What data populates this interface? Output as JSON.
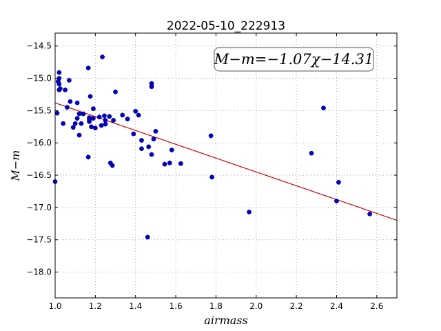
{
  "chart_data": {
    "type": "scatter",
    "title": "2022-05-10_222913",
    "xlabel": "airmass",
    "ylabel": "M−m",
    "xlim": [
      1.0,
      2.7
    ],
    "ylim": [
      -18.4,
      -14.3
    ],
    "x_ticks": [
      1.0,
      1.2,
      1.4,
      1.6,
      1.8,
      2.0,
      2.2,
      2.4,
      2.6
    ],
    "x_tick_labels": [
      "1.0",
      "1.2",
      "1.4",
      "1.6",
      "1.8",
      "2.0",
      "2.2",
      "2.4",
      "2.6"
    ],
    "y_ticks": [
      -14.5,
      -15.0,
      -15.5,
      -16.0,
      -16.5,
      -17.0,
      -17.5,
      -18.0
    ],
    "y_tick_labels": [
      "−14.5",
      "−15.0",
      "−15.5",
      "−16.0",
      "−16.5",
      "−17.0",
      "−17.5",
      "−18.0"
    ],
    "grid": true,
    "annotation": "M−m=−1.07χ−14.31",
    "fit": {
      "slope": -1.07,
      "intercept": -14.31,
      "color": "#cc0000"
    },
    "point_color": "#0000cc",
    "points": [
      [
        1.0,
        -16.6
      ],
      [
        1.01,
        -15.54
      ],
      [
        1.015,
        -15.05
      ],
      [
        1.02,
        -15.0
      ],
      [
        1.02,
        -15.09
      ],
      [
        1.02,
        -14.91
      ],
      [
        1.02,
        -15.18
      ],
      [
        1.025,
        -15.16
      ],
      [
        1.04,
        -15.7
      ],
      [
        1.05,
        -15.18
      ],
      [
        1.06,
        -15.45
      ],
      [
        1.07,
        -15.03
      ],
      [
        1.075,
        -15.36
      ],
      [
        1.09,
        -15.76
      ],
      [
        1.1,
        -15.7
      ],
      [
        1.11,
        -15.38
      ],
      [
        1.11,
        -15.62
      ],
      [
        1.12,
        -15.55
      ],
      [
        1.12,
        -15.88
      ],
      [
        1.13,
        -15.7
      ],
      [
        1.14,
        -15.55
      ],
      [
        1.165,
        -16.22
      ],
      [
        1.165,
        -14.84
      ],
      [
        1.17,
        -15.61
      ],
      [
        1.17,
        -15.67
      ],
      [
        1.17,
        -15.64
      ],
      [
        1.175,
        -15.28
      ],
      [
        1.18,
        -15.75
      ],
      [
        1.19,
        -15.62
      ],
      [
        1.19,
        -15.47
      ],
      [
        1.2,
        -15.77
      ],
      [
        1.22,
        -15.6
      ],
      [
        1.23,
        -15.73
      ],
      [
        1.235,
        -14.67
      ],
      [
        1.245,
        -15.58
      ],
      [
        1.25,
        -15.65
      ],
      [
        1.25,
        -15.71
      ],
      [
        1.27,
        -15.59
      ],
      [
        1.275,
        -16.31
      ],
      [
        1.285,
        -16.35
      ],
      [
        1.29,
        -15.65
      ],
      [
        1.3,
        -15.21
      ],
      [
        1.335,
        -15.57
      ],
      [
        1.36,
        -15.63
      ],
      [
        1.39,
        -15.86
      ],
      [
        1.4,
        -15.51
      ],
      [
        1.415,
        -15.57
      ],
      [
        1.43,
        -15.96
      ],
      [
        1.43,
        -16.09
      ],
      [
        1.46,
        -17.46
      ],
      [
        1.465,
        -16.06
      ],
      [
        1.48,
        -15.08
      ],
      [
        1.48,
        -15.13
      ],
      [
        1.48,
        -16.18
      ],
      [
        1.49,
        -15.94
      ],
      [
        1.5,
        -15.82
      ],
      [
        1.545,
        -16.33
      ],
      [
        1.57,
        -16.31
      ],
      [
        1.58,
        -16.11
      ],
      [
        1.625,
        -16.32
      ],
      [
        1.775,
        -15.89
      ],
      [
        1.78,
        -16.53
      ],
      [
        1.965,
        -17.07
      ],
      [
        2.275,
        -16.16
      ],
      [
        2.335,
        -15.46
      ],
      [
        2.4,
        -16.9
      ],
      [
        2.41,
        -16.61
      ],
      [
        2.565,
        -17.1
      ]
    ]
  }
}
